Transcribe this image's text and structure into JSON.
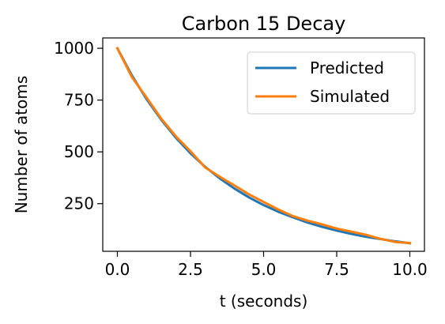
{
  "chart_data": {
    "type": "line",
    "title": "Carbon 15 Decay",
    "xlabel": "t (seconds)",
    "ylabel": "Number of atoms",
    "xlim": [
      -0.5,
      10.5
    ],
    "ylim": [
      20,
      1050
    ],
    "xticks": [
      0.0,
      2.5,
      5.0,
      7.5,
      10.0
    ],
    "xtick_labels": [
      "0.0",
      "2.5",
      "5.0",
      "7.5",
      "10.0"
    ],
    "yticks": [
      250,
      500,
      750,
      1000
    ],
    "ytick_labels": [
      "250",
      "500",
      "750",
      "1000"
    ],
    "grid": false,
    "legend_position": "top-right",
    "series": [
      {
        "name": "Predicted",
        "color": "#1f77b4",
        "x": [
          0,
          0.5,
          1,
          1.5,
          2,
          2.5,
          3,
          3.5,
          4,
          4.5,
          5,
          5.5,
          6,
          6.5,
          7,
          7.5,
          8,
          8.5,
          9,
          9.5,
          10
        ],
        "y": [
          1000,
          868,
          754,
          655,
          568,
          493,
          428,
          372,
          323,
          280,
          243,
          211,
          184,
          159,
          138,
          120,
          104,
          90,
          79,
          68,
          59
        ]
      },
      {
        "name": "Simulated",
        "color": "#ff7f0e",
        "x": [
          0,
          0.5,
          1,
          1.5,
          2,
          2.5,
          3,
          3.5,
          4,
          4.5,
          5,
          5.5,
          6,
          6.5,
          7,
          7.5,
          8,
          8.5,
          9,
          9.5,
          10
        ],
        "y": [
          1000,
          860,
          762,
          660,
          575,
          503,
          425,
          380,
          338,
          295,
          258,
          222,
          190,
          168,
          150,
          130,
          115,
          100,
          80,
          65,
          60
        ]
      }
    ]
  }
}
